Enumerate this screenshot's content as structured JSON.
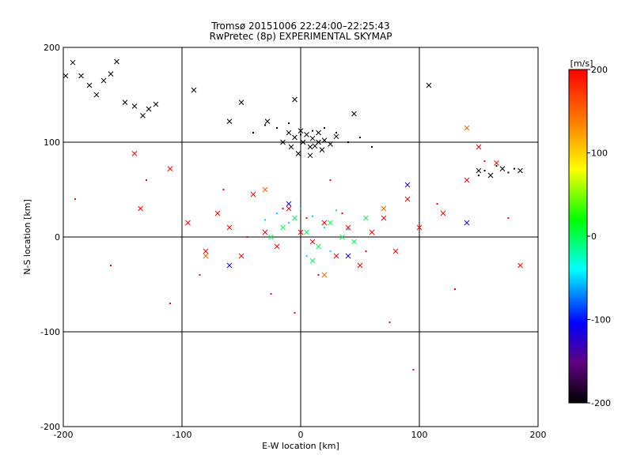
{
  "chart_data": {
    "type": "scatter",
    "title": "Tromsø 20151006 22:24:00–22:25:43",
    "subtitle": "RwPretec (8p) EXPERIMENTAL SKYMAP",
    "xlabel": "E-W location [km]",
    "ylabel": "N-S location [km]",
    "xlim": [
      -200,
      200
    ],
    "ylim": [
      -200,
      200
    ],
    "xticks": [
      -200,
      -100,
      0,
      100,
      200
    ],
    "yticks": [
      -200,
      -100,
      0,
      100,
      200
    ],
    "grid": true,
    "colorbar": {
      "label": "[m/s]",
      "min": -200,
      "max": 200,
      "ticks": [
        200,
        100,
        0,
        -100,
        -200
      ]
    },
    "point_groups": [
      {
        "marker": "x",
        "velocity": -200,
        "x": [
          -198,
          -192,
          -185,
          -178,
          -172,
          -166,
          -160,
          -155,
          -148,
          -140,
          -133,
          -128,
          -122,
          -90,
          -60,
          -50,
          -28,
          -5,
          8,
          15,
          45,
          108,
          150,
          160,
          170,
          185
        ],
        "y": [
          170,
          184,
          170,
          160,
          150,
          165,
          172,
          185,
          142,
          138,
          128,
          135,
          140,
          155,
          122,
          142,
          122,
          145,
          95,
          100,
          130,
          160,
          70,
          65,
          72,
          70
        ]
      },
      {
        "marker": "x",
        "velocity": -200,
        "x": [
          -10,
          -5,
          0,
          5,
          10,
          15,
          20,
          25,
          30,
          -15,
          -8,
          2,
          12,
          18,
          -2,
          8
        ],
        "y": [
          110,
          105,
          112,
          108,
          104,
          110,
          102,
          98,
          106,
          100,
          95,
          100,
          96,
          92,
          88,
          86
        ]
      },
      {
        "marker": "dot",
        "velocity": -200,
        "x": [
          -40,
          -30,
          -20,
          -10,
          0,
          10,
          20,
          30,
          40,
          50,
          60,
          150,
          155,
          165,
          175,
          180
        ],
        "y": [
          110,
          118,
          115,
          120,
          108,
          112,
          115,
          110,
          100,
          105,
          95,
          65,
          70,
          75,
          68,
          72
        ]
      },
      {
        "marker": "x",
        "velocity": 200,
        "x": [
          -140,
          -135,
          -110,
          -95,
          -80,
          -70,
          -60,
          -50,
          -40,
          -30,
          -20,
          -10,
          0,
          10,
          20,
          30,
          40,
          50,
          60,
          70,
          80,
          90,
          100,
          120,
          140,
          150,
          165,
          185
        ],
        "y": [
          88,
          30,
          72,
          15,
          -15,
          25,
          10,
          -20,
          45,
          5,
          -10,
          30,
          5,
          -5,
          15,
          -20,
          10,
          -30,
          5,
          20,
          -15,
          40,
          10,
          25,
          60,
          95,
          78,
          -30
        ]
      },
      {
        "marker": "dot",
        "velocity": 200,
        "x": [
          -190,
          -160,
          -130,
          -110,
          -85,
          -65,
          -45,
          -25,
          -15,
          -5,
          5,
          15,
          25,
          35,
          55,
          75,
          95,
          115,
          130,
          155,
          175
        ],
        "y": [
          40,
          -30,
          60,
          -70,
          -40,
          50,
          0,
          -60,
          30,
          -80,
          20,
          -40,
          60,
          25,
          -15,
          -90,
          -140,
          35,
          -55,
          80,
          20
        ]
      },
      {
        "marker": "x",
        "velocity": 0,
        "x": [
          -15,
          -5,
          5,
          15,
          25,
          35,
          45,
          55,
          -25,
          10
        ],
        "y": [
          10,
          20,
          5,
          -10,
          15,
          0,
          -5,
          20,
          0,
          -25
        ]
      },
      {
        "marker": "dot",
        "velocity": -50,
        "x": [
          -20,
          -10,
          0,
          10,
          20,
          30,
          -30,
          40,
          25,
          5
        ],
        "y": [
          25,
          15,
          30,
          22,
          10,
          28,
          18,
          8,
          -15,
          -20
        ]
      },
      {
        "marker": "x",
        "velocity": 150,
        "x": [
          -80,
          -30,
          20,
          70,
          140
        ],
        "y": [
          -20,
          50,
          -40,
          30,
          115
        ]
      },
      {
        "marker": "x",
        "velocity": -120,
        "x": [
          -60,
          -10,
          40,
          90,
          140
        ],
        "y": [
          -30,
          35,
          -20,
          55,
          15
        ]
      }
    ]
  }
}
